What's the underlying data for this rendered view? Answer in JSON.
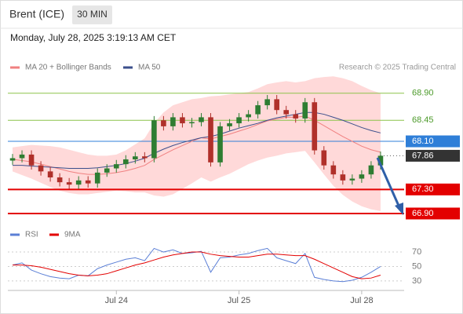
{
  "header": {
    "symbol": "Brent (ICE)",
    "interval": "30 MIN",
    "timestamp": "Monday, July 28, 2025 3:19:13 AM CET",
    "credit": "Research © 2025 Trading Central"
  },
  "chart_data": [
    {
      "type": "candlestick",
      "up_color": "#2e7d32",
      "down_color": "#b0302a",
      "ylim": [
        66.73,
        69.21
      ],
      "open": [
        67.78,
        67.82,
        67.88,
        67.7,
        67.6,
        67.5,
        67.42,
        67.38,
        67.45,
        67.4,
        67.58,
        67.65,
        67.72,
        67.8,
        67.85,
        67.82,
        68.45,
        68.35,
        68.5,
        68.4,
        68.42,
        68.5,
        67.75,
        68.35,
        68.4,
        68.5,
        68.55,
        68.7,
        68.8,
        68.62,
        68.55,
        68.48,
        68.75,
        67.95,
        67.7,
        67.55,
        67.45,
        67.48,
        67.55,
        67.7
      ],
      "high": [
        67.89,
        67.95,
        67.95,
        67.77,
        67.67,
        67.57,
        67.49,
        67.52,
        67.52,
        67.65,
        67.72,
        67.79,
        67.87,
        67.92,
        67.92,
        68.52,
        68.52,
        68.57,
        68.57,
        68.49,
        68.57,
        68.57,
        68.42,
        68.47,
        68.57,
        68.62,
        68.77,
        68.87,
        68.87,
        68.69,
        68.62,
        68.82,
        68.82,
        68.02,
        67.77,
        67.62,
        67.55,
        67.62,
        67.77,
        67.93
      ],
      "low": [
        67.71,
        67.75,
        67.63,
        67.53,
        67.43,
        67.35,
        67.31,
        67.31,
        67.33,
        67.33,
        67.51,
        67.58,
        67.65,
        67.73,
        67.75,
        67.75,
        68.28,
        68.28,
        68.33,
        68.33,
        68.35,
        67.68,
        67.68,
        68.28,
        68.33,
        68.43,
        68.48,
        68.63,
        68.55,
        68.48,
        68.41,
        68.41,
        67.88,
        67.63,
        67.48,
        67.38,
        67.38,
        67.41,
        67.48,
        67.63
      ],
      "close": [
        67.82,
        67.88,
        67.7,
        67.6,
        67.5,
        67.42,
        67.38,
        67.45,
        67.4,
        67.58,
        67.65,
        67.72,
        67.8,
        67.85,
        67.82,
        68.45,
        68.35,
        68.5,
        68.4,
        68.42,
        68.5,
        67.75,
        68.35,
        68.4,
        68.5,
        68.55,
        68.7,
        68.8,
        68.62,
        68.55,
        68.48,
        68.75,
        67.95,
        67.7,
        67.55,
        67.45,
        67.48,
        67.55,
        67.7,
        67.86
      ],
      "series": [
        {
          "name": "MA 20 + Bollinger Bands",
          "color": "#f08080",
          "band_color": "#ffd0d0",
          "values": [
            67.8,
            67.78,
            67.76,
            67.72,
            67.68,
            67.64,
            67.6,
            67.57,
            67.55,
            67.55,
            67.56,
            67.58,
            67.61,
            67.65,
            67.7,
            67.8,
            67.88,
            67.96,
            68.03,
            68.1,
            68.16,
            68.14,
            68.18,
            68.22,
            68.27,
            68.32,
            68.38,
            68.44,
            68.47,
            68.5,
            68.5,
            68.52,
            68.45,
            68.36,
            68.27,
            68.18,
            68.1,
            68.02,
            67.96,
            67.92
          ],
          "upper": [
            68.0,
            68.02,
            68.04,
            68.03,
            68.02,
            68.0,
            67.96,
            67.92,
            67.88,
            67.86,
            67.86,
            67.88,
            67.95,
            68.05,
            68.15,
            68.4,
            68.58,
            68.7,
            68.75,
            68.8,
            68.82,
            68.85,
            68.86,
            68.88,
            68.9,
            68.92,
            68.98,
            69.05,
            69.08,
            69.1,
            69.08,
            69.1,
            69.15,
            69.17,
            69.18,
            69.15,
            69.1,
            69.02,
            68.95,
            68.9
          ],
          "lower": [
            67.6,
            67.54,
            67.48,
            67.41,
            67.34,
            67.28,
            67.24,
            67.22,
            67.22,
            67.24,
            67.26,
            67.28,
            67.27,
            67.25,
            67.25,
            67.2,
            67.18,
            67.22,
            67.31,
            67.4,
            67.5,
            67.43,
            67.5,
            67.56,
            67.64,
            67.72,
            67.78,
            67.83,
            67.86,
            67.9,
            67.92,
            67.94,
            67.75,
            67.55,
            67.36,
            67.21,
            67.1,
            67.02,
            66.97,
            66.94
          ]
        },
        {
          "name": "MA 50",
          "color": "#3b4f8c",
          "values": [
            67.7,
            67.7,
            67.69,
            67.68,
            67.67,
            67.66,
            67.65,
            67.65,
            67.65,
            67.66,
            67.68,
            67.7,
            67.73,
            67.77,
            67.82,
            67.9,
            67.97,
            68.03,
            68.08,
            68.12,
            68.16,
            68.18,
            68.22,
            68.27,
            68.32,
            68.36,
            68.4,
            68.45,
            68.49,
            68.52,
            68.55,
            68.58,
            68.58,
            68.55,
            68.5,
            68.45,
            68.39,
            68.33,
            68.28,
            68.24
          ]
        }
      ],
      "levels": [
        {
          "value": 68.9,
          "label": "68.90",
          "style": "target",
          "color": "#8bc34a",
          "text_color": "#4c9a2a"
        },
        {
          "value": 68.45,
          "label": "68.45",
          "style": "target",
          "color": "#8bc34a",
          "text_color": "#4c9a2a"
        },
        {
          "value": 68.1,
          "label": "68.10",
          "style": "pivot",
          "color": "#2f7fd8",
          "text_color": "#ffffff"
        },
        {
          "value": 67.86,
          "label": "67.86",
          "style": "last",
          "color": "#333333",
          "text_color": "#ffffff"
        },
        {
          "value": 67.3,
          "label": "67.30",
          "style": "support",
          "color": "#e30000",
          "text_color": "#ffffff"
        },
        {
          "value": 66.9,
          "label": "66.90",
          "style": "support",
          "color": "#e30000",
          "text_color": "#ffffff"
        }
      ]
    },
    {
      "type": "line",
      "ylim": [
        19,
        82
      ],
      "yticks": [
        70,
        50,
        30
      ],
      "categories": [
        null,
        null,
        null,
        null,
        null,
        null,
        null,
        null,
        null,
        null,
        null,
        "Jul 24",
        null,
        null,
        null,
        null,
        null,
        null,
        null,
        null,
        null,
        null,
        null,
        null,
        "Jul 25",
        null,
        null,
        null,
        null,
        null,
        null,
        null,
        null,
        null,
        null,
        null,
        null,
        "Jul 28",
        null,
        null
      ],
      "series": [
        {
          "name": "RSI",
          "color": "#5b7fd6",
          "values": [
            52,
            55,
            45,
            40,
            36,
            34,
            33,
            38,
            37,
            47,
            52,
            56,
            60,
            62,
            58,
            75,
            70,
            73,
            68,
            69,
            71,
            42,
            62,
            63,
            66,
            68,
            72,
            75,
            62,
            58,
            54,
            68,
            35,
            32,
            30,
            29,
            31,
            35,
            42,
            50
          ]
        },
        {
          "name": "9MA",
          "color": "#e30000",
          "values": [
            52,
            52,
            51,
            49,
            46,
            43,
            40,
            38,
            37,
            38,
            40,
            44,
            48,
            52,
            55,
            59,
            63,
            66,
            68,
            70,
            70,
            67,
            65,
            64,
            63,
            63,
            65,
            67,
            67,
            66,
            65,
            65,
            60,
            54,
            48,
            42,
            36,
            33,
            34,
            38
          ]
        }
      ]
    }
  ]
}
